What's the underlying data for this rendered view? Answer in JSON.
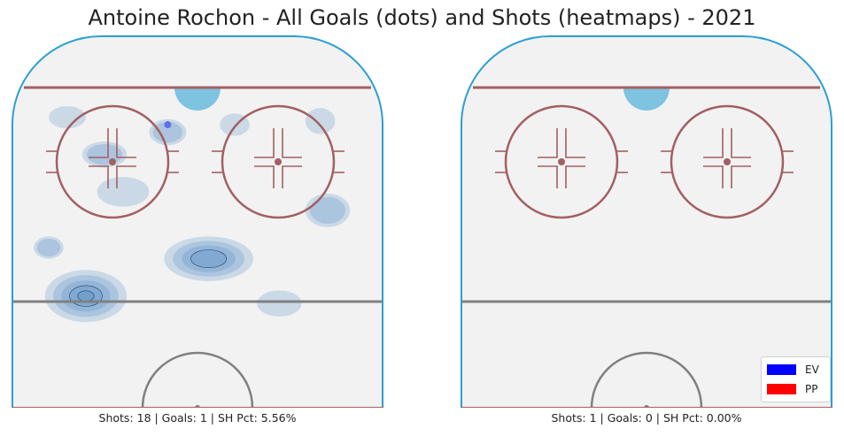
{
  "chart_data": {
    "type": "heatmap",
    "title": "Antoine Rochon - All Goals (dots) and Shots (heatmaps) - 2021",
    "legend": {
      "placement": "bottom-right",
      "entries": [
        {
          "label": "EV",
          "color": "#0000ff"
        },
        {
          "label": "PP",
          "color": "#ff0000"
        }
      ]
    },
    "panels": [
      {
        "caption": "Shots: 18 | Goals: 1 | SH Pct: 5.56%",
        "shots": 18,
        "goals": 1,
        "sh_pct": 5.56,
        "goal_dots": [
          {
            "strength": "EV",
            "x": 0.42,
            "y": 0.24
          }
        ],
        "heat_blobs": [
          {
            "x": 0.2,
            "y": 0.7,
            "rx": 0.11,
            "ry": 0.07,
            "density": 1.0
          },
          {
            "x": 0.1,
            "y": 0.57,
            "rx": 0.04,
            "ry": 0.03,
            "density": 0.35
          },
          {
            "x": 0.53,
            "y": 0.6,
            "rx": 0.12,
            "ry": 0.06,
            "density": 0.75
          },
          {
            "x": 0.25,
            "y": 0.32,
            "rx": 0.06,
            "ry": 0.035,
            "density": 0.3
          },
          {
            "x": 0.42,
            "y": 0.26,
            "rx": 0.05,
            "ry": 0.035,
            "density": 0.3
          },
          {
            "x": 0.3,
            "y": 0.42,
            "rx": 0.07,
            "ry": 0.04,
            "density": 0.25
          },
          {
            "x": 0.85,
            "y": 0.47,
            "rx": 0.06,
            "ry": 0.045,
            "density": 0.45
          },
          {
            "x": 0.83,
            "y": 0.23,
            "rx": 0.04,
            "ry": 0.035,
            "density": 0.25
          },
          {
            "x": 0.15,
            "y": 0.22,
            "rx": 0.05,
            "ry": 0.03,
            "density": 0.2
          },
          {
            "x": 0.72,
            "y": 0.72,
            "rx": 0.06,
            "ry": 0.035,
            "density": 0.2
          },
          {
            "x": 0.6,
            "y": 0.24,
            "rx": 0.04,
            "ry": 0.03,
            "density": 0.18
          }
        ]
      },
      {
        "caption": "Shots: 1 | Goals: 0 | SH Pct: 0.00%",
        "shots": 1,
        "goals": 0,
        "sh_pct": 0.0,
        "goal_dots": [],
        "heat_blobs": []
      }
    ],
    "colors": {
      "ice": "#f2f2f2",
      "boards": "#2b9fd1",
      "goal_line": "#a35f62",
      "faceoff": "#a35f62",
      "crease": "#7ec3e0",
      "center_line": "#808080",
      "heat": "#3f7fc0",
      "goal_dot_ev": "#6070e8"
    }
  }
}
